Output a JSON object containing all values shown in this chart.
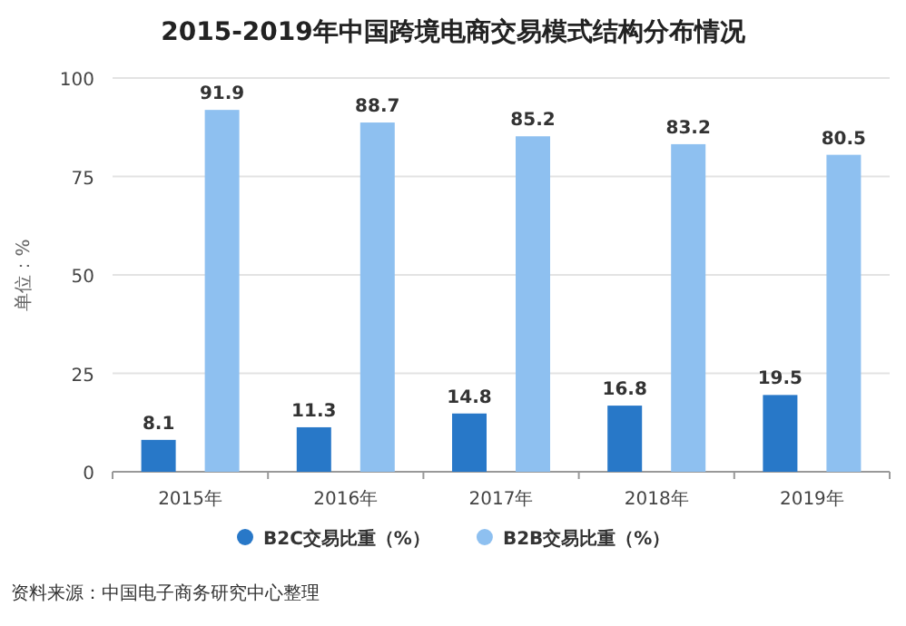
{
  "chart_data": {
    "type": "bar",
    "title": "2015-2019年中国跨境电商交易模式结构分布情况",
    "ylabel": "单位：%",
    "categories": [
      "2015年",
      "2016年",
      "2017年",
      "2018年",
      "2019年"
    ],
    "series": [
      {
        "name": "B2C交易比重（%）",
        "color": "#2878c8",
        "values": [
          8.1,
          11.3,
          14.8,
          16.8,
          19.5
        ]
      },
      {
        "name": "B2B交易比重（%）",
        "color": "#8ec0f0",
        "values": [
          91.9,
          88.7,
          85.2,
          83.2,
          80.5
        ]
      }
    ],
    "ylim": [
      0,
      100
    ],
    "yticks": [
      0,
      25,
      50,
      75,
      100
    ],
    "grid": "y",
    "legend": "bottom",
    "data_labels": true,
    "annotations": [
      "资料来源：中国电子商务研究中心整理"
    ]
  }
}
